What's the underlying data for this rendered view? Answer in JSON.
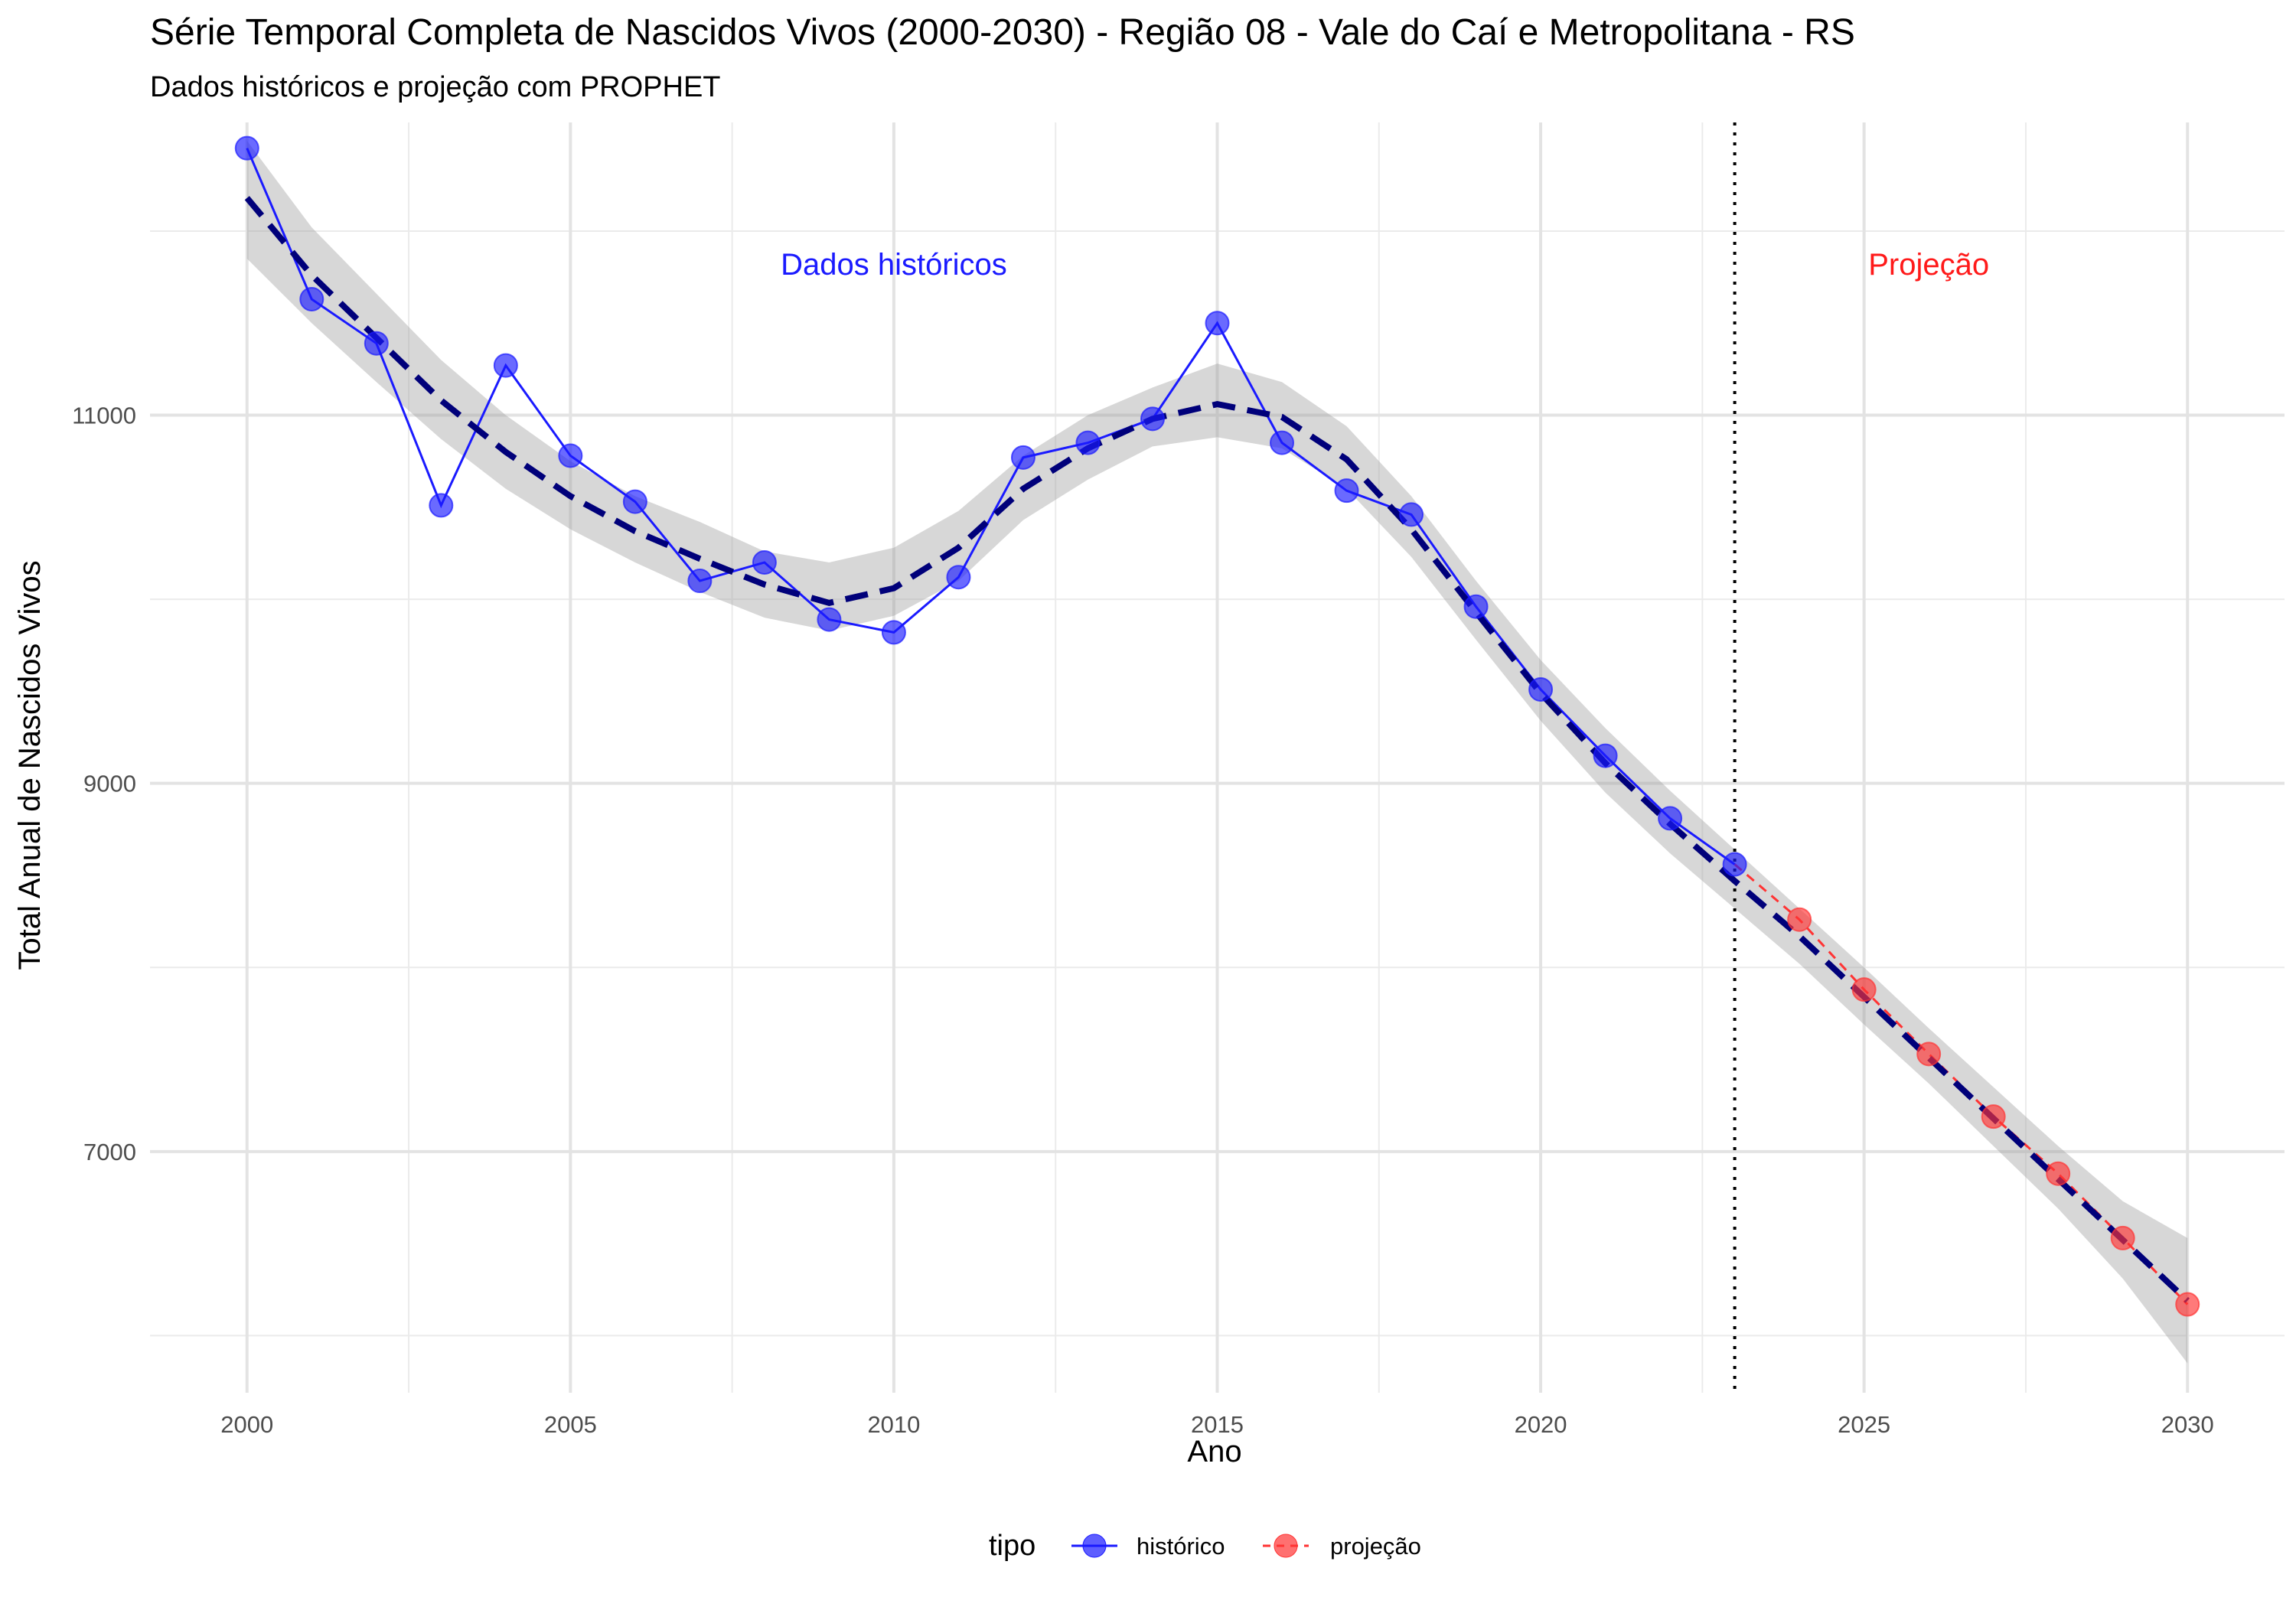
{
  "chart_data": {
    "type": "line",
    "title": "Série Temporal Completa de Nascidos Vivos (2000-2030) -  Região 08 - Vale do Caí e Metropolitana - RS",
    "subtitle": "Dados históricos e projeção com PROPHET",
    "xlabel": "Ano",
    "ylabel": "Total Anual de Nascidos Vivos",
    "xlim": [
      1998.5,
      2031.5
    ],
    "ylim": [
      5690,
      12590
    ],
    "x_ticks": [
      2000,
      2005,
      2010,
      2015,
      2020,
      2025,
      2030
    ],
    "y_ticks": [
      7000,
      9000,
      11000
    ],
    "y_minor_ticks": [
      6000,
      8000,
      10000,
      12000
    ],
    "grid": true,
    "vline_x": 2023,
    "legend": {
      "title": "tipo",
      "position": "bottom",
      "entries": [
        {
          "label": "histórico",
          "color": "#1a1aff"
        },
        {
          "label": "projeção",
          "color": "#ff3333"
        }
      ]
    },
    "annotations": [
      {
        "text": "Dados históricos",
        "x": 2010,
        "y": 11820,
        "color": "#1a1aff"
      },
      {
        "text": "Projeção",
        "x": 2026,
        "y": 11820,
        "color": "#ff1a1a"
      }
    ],
    "series": [
      {
        "name": "histórico",
        "color": "#1a1aff",
        "x": [
          2000,
          2001,
          2002,
          2003,
          2004,
          2005,
          2006,
          2007,
          2008,
          2009,
          2010,
          2011,
          2012,
          2013,
          2014,
          2015,
          2016,
          2017,
          2018,
          2019,
          2020,
          2021,
          2022,
          2023
        ],
        "values": [
          12450,
          11630,
          11390,
          10510,
          11270,
          10780,
          10530,
          10100,
          10200,
          9890,
          9820,
          10120,
          10770,
          10850,
          10980,
          11500,
          10850,
          10590,
          10460,
          9960,
          9510,
          9150,
          8810,
          8560
        ]
      },
      {
        "name": "projeção",
        "color": "#ff3333",
        "x": [
          2023,
          2024,
          2025,
          2026,
          2027,
          2028,
          2029,
          2030
        ],
        "values": [
          8560,
          8260,
          7880,
          7530,
          7190,
          6880,
          6530,
          6170
        ]
      }
    ],
    "trend": {
      "color": "#00007a",
      "x": [
        2000,
        2001,
        2002,
        2003,
        2004,
        2005,
        2006,
        2007,
        2008,
        2009,
        2010,
        2011,
        2012,
        2013,
        2014,
        2015,
        2016,
        2017,
        2018,
        2019,
        2020,
        2021,
        2022,
        2023,
        2024,
        2025,
        2026,
        2027,
        2028,
        2029,
        2030
      ],
      "values": [
        12180,
        11760,
        11420,
        11080,
        10800,
        10560,
        10370,
        10220,
        10080,
        9980,
        10060,
        10280,
        10600,
        10820,
        10980,
        11060,
        10990,
        10760,
        10380,
        9930,
        9490,
        9110,
        8780,
        8470,
        8170,
        7840,
        7510,
        7180,
        6850,
        6520,
        6190
      ],
      "band_lower": [
        11850,
        11500,
        11180,
        10870,
        10600,
        10380,
        10200,
        10040,
        9900,
        9830,
        9910,
        10100,
        10430,
        10650,
        10830,
        10880,
        10820,
        10600,
        10230,
        9780,
        9340,
        8950,
        8620,
        8320,
        8020,
        7690,
        7370,
        7030,
        6690,
        6310,
        5850
      ],
      "band_upper": [
        12490,
        12020,
        11660,
        11300,
        11000,
        10750,
        10560,
        10420,
        10260,
        10200,
        10280,
        10480,
        10780,
        11000,
        11150,
        11280,
        11180,
        10940,
        10560,
        10100,
        9670,
        9300,
        8960,
        8640,
        8320,
        8000,
        7670,
        7350,
        7030,
        6730,
        6530
      ]
    }
  }
}
